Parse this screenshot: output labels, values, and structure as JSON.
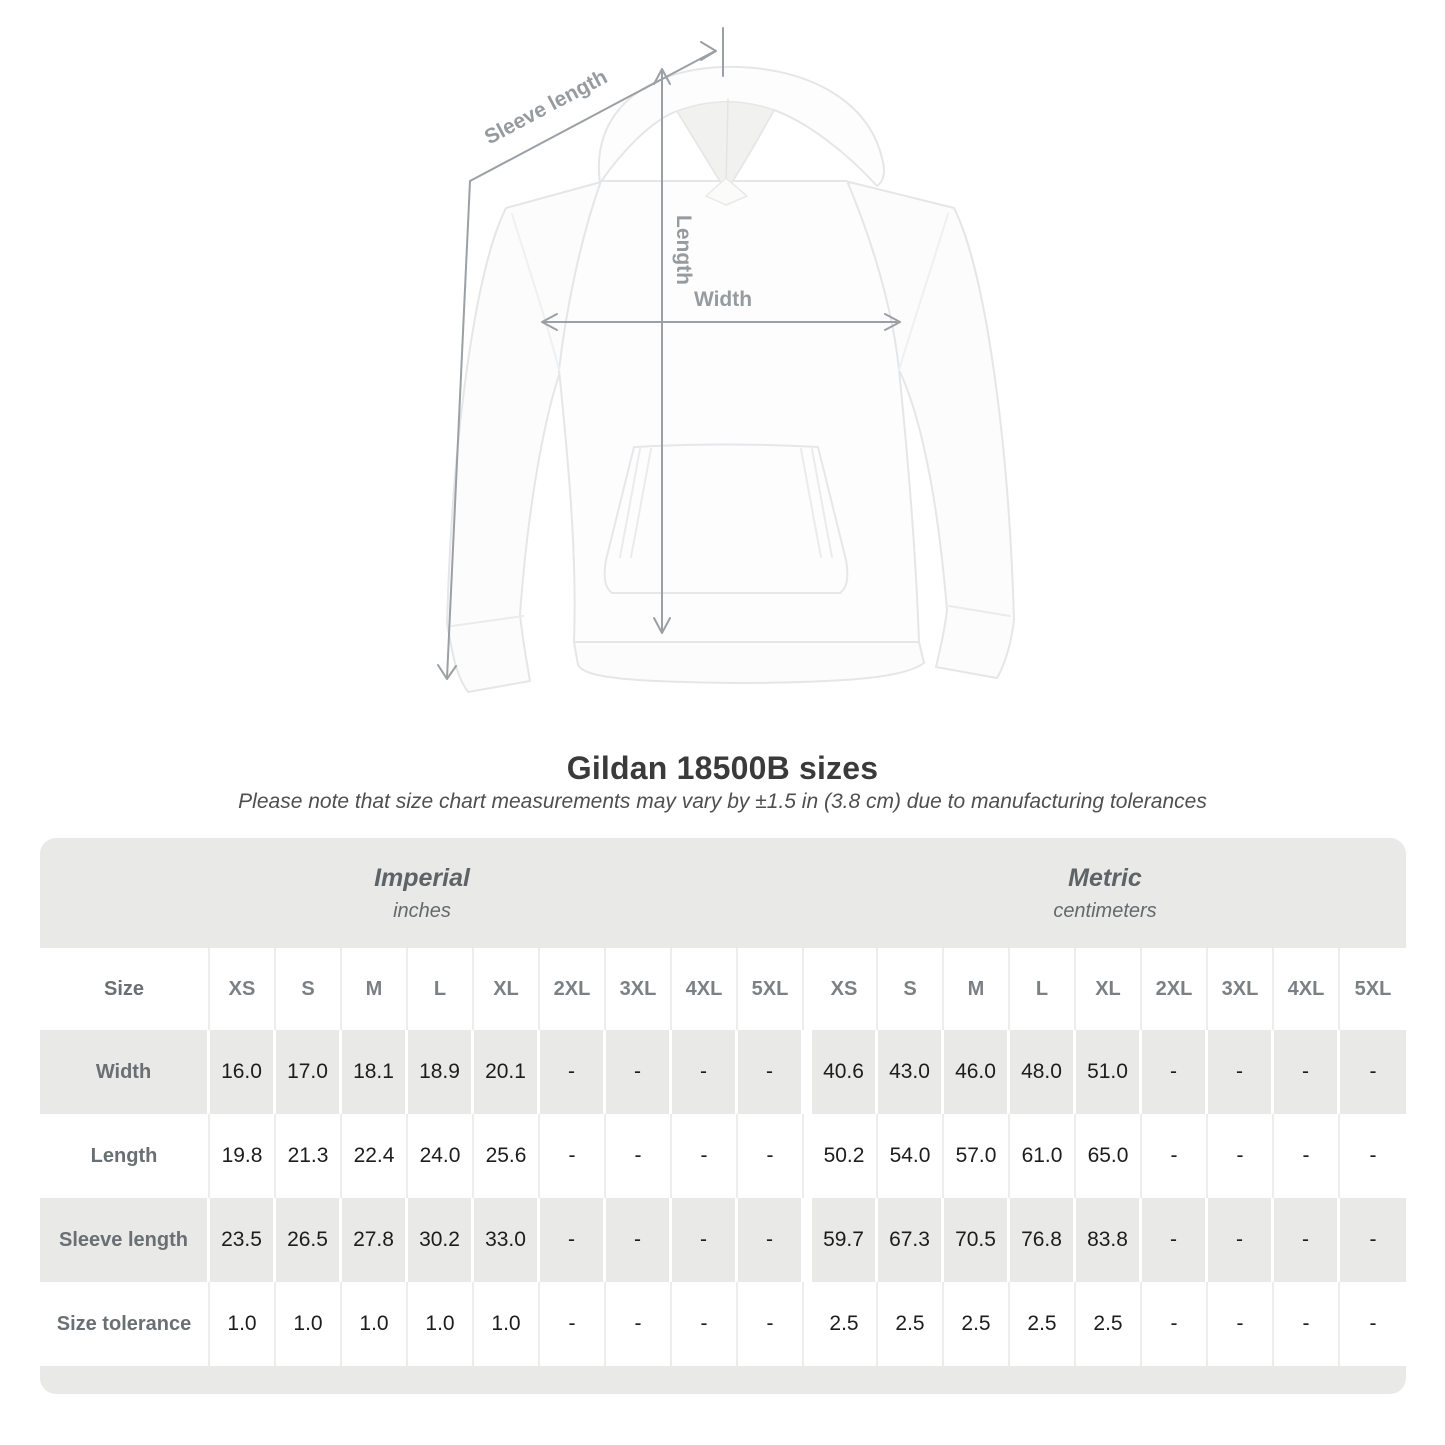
{
  "title": "Gildan 18500B sizes",
  "subtitle": "Please note that size chart measurements may vary by ±1.5 in (3.8 cm) due to manufacturing tolerances",
  "diagram": {
    "sleeve_length_label": "Sleeve length",
    "length_label": "Length",
    "width_label": "Width"
  },
  "table": {
    "size_label": "Size",
    "unit_groups": [
      {
        "name": "Imperial",
        "unit": "inches"
      },
      {
        "name": "Metric",
        "unit": "centimeters"
      }
    ],
    "sizes": [
      "XS",
      "S",
      "M",
      "L",
      "XL",
      "2XL",
      "3XL",
      "4XL",
      "5XL"
    ],
    "rows": [
      {
        "label": "Width",
        "imperial": [
          "16.0",
          "17.0",
          "18.1",
          "18.9",
          "20.1",
          "-",
          "-",
          "-",
          "-"
        ],
        "metric": [
          "40.6",
          "43.0",
          "46.0",
          "48.0",
          "51.0",
          "-",
          "-",
          "-",
          "-"
        ]
      },
      {
        "label": "Length",
        "imperial": [
          "19.8",
          "21.3",
          "22.4",
          "24.0",
          "25.6",
          "-",
          "-",
          "-",
          "-"
        ],
        "metric": [
          "50.2",
          "54.0",
          "57.0",
          "61.0",
          "65.0",
          "-",
          "-",
          "-",
          "-"
        ]
      },
      {
        "label": "Sleeve length",
        "imperial": [
          "23.5",
          "26.5",
          "27.8",
          "30.2",
          "33.0",
          "-",
          "-",
          "-",
          "-"
        ],
        "metric": [
          "59.7",
          "67.3",
          "70.5",
          "76.8",
          "83.8",
          "-",
          "-",
          "-",
          "-"
        ]
      },
      {
        "label": "Size tolerance",
        "imperial": [
          "1.0",
          "1.0",
          "1.0",
          "1.0",
          "1.0",
          "-",
          "-",
          "-",
          "-"
        ],
        "metric": [
          "2.5",
          "2.5",
          "2.5",
          "2.5",
          "2.5",
          "-",
          "-",
          "-",
          "-"
        ]
      }
    ]
  },
  "chart_data": {
    "type": "table",
    "title": "Gildan 18500B sizes",
    "subtitle": "Please note that size chart measurements may vary by ±1.5 in (3.8 cm) due to manufacturing tolerances",
    "column_groups": [
      "Imperial (inches)",
      "Metric (centimeters)"
    ],
    "columns": [
      "Size",
      "XS",
      "S",
      "M",
      "L",
      "XL",
      "2XL",
      "3XL",
      "4XL",
      "5XL"
    ],
    "rows": [
      {
        "measurement": "Width",
        "imperial_inches": [
          16.0,
          17.0,
          18.1,
          18.9,
          20.1,
          null,
          null,
          null,
          null
        ],
        "metric_cm": [
          40.6,
          43.0,
          46.0,
          48.0,
          51.0,
          null,
          null,
          null,
          null
        ]
      },
      {
        "measurement": "Length",
        "imperial_inches": [
          19.8,
          21.3,
          22.4,
          24.0,
          25.6,
          null,
          null,
          null,
          null
        ],
        "metric_cm": [
          50.2,
          54.0,
          57.0,
          61.0,
          65.0,
          null,
          null,
          null,
          null
        ]
      },
      {
        "measurement": "Sleeve length",
        "imperial_inches": [
          23.5,
          26.5,
          27.8,
          30.2,
          33.0,
          null,
          null,
          null,
          null
        ],
        "metric_cm": [
          59.7,
          67.3,
          70.5,
          76.8,
          83.8,
          null,
          null,
          null,
          null
        ]
      },
      {
        "measurement": "Size tolerance",
        "imperial_inches": [
          1.0,
          1.0,
          1.0,
          1.0,
          1.0,
          null,
          null,
          null,
          null
        ],
        "metric_cm": [
          2.5,
          2.5,
          2.5,
          2.5,
          2.5,
          null,
          null,
          null,
          null
        ]
      }
    ]
  },
  "colors": {
    "stripe_gray": "#e9e9e8",
    "arrow_gray": "#9ba0a5",
    "label_gray": "#6a6f73",
    "value_dark": "#1d1d1d",
    "title_dark": "#3a3a3a"
  }
}
